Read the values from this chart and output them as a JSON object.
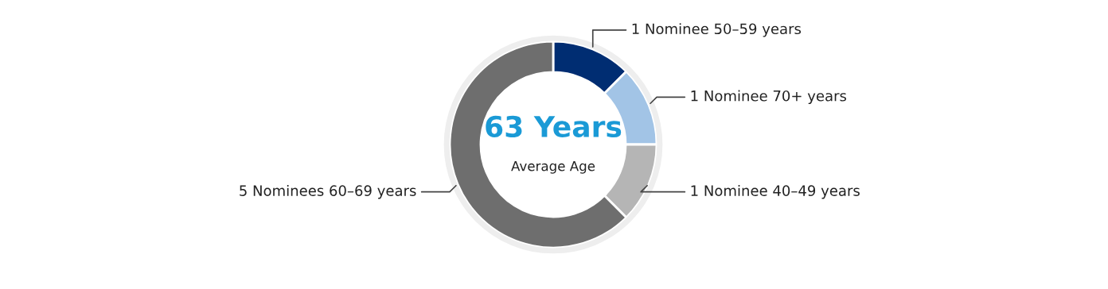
{
  "chart_data": {
    "type": "donut",
    "title": "63 Years",
    "subtitle": "Average Age",
    "categories": [
      "1 Nominee 50–59 years",
      "1 Nominee 70+ years",
      "1 Nominee 40–49 years",
      "5 Nominees 60–69 years"
    ],
    "values": [
      1,
      1,
      1,
      5
    ],
    "colors": [
      "#002d72",
      "#a2c4e6",
      "#b5b5b5",
      "#6e6e6e"
    ],
    "legend": false
  }
}
